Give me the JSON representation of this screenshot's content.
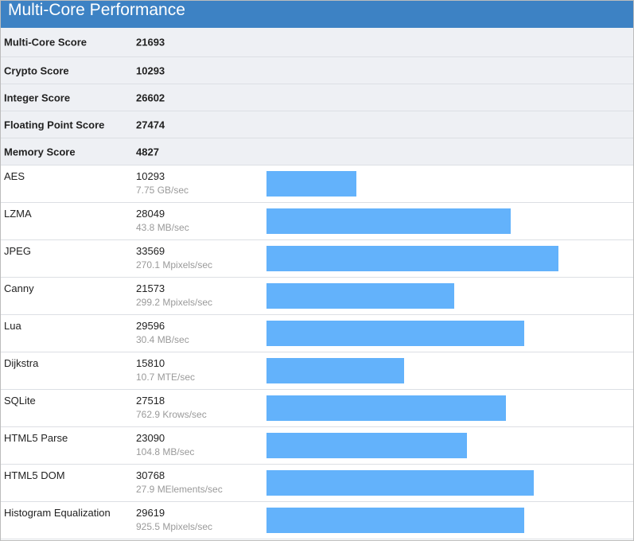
{
  "header": {
    "title": "Multi-Core Performance"
  },
  "summary": [
    {
      "label": "Multi-Core Score",
      "value": "21693"
    },
    {
      "label": "Crypto Score",
      "value": "10293"
    },
    {
      "label": "Integer Score",
      "value": "26602"
    },
    {
      "label": "Floating Point Score",
      "value": "27474"
    },
    {
      "label": "Memory Score",
      "value": "4827"
    }
  ],
  "benchmarks": [
    {
      "name": "AES",
      "score": "10293",
      "rate": "7.75 GB/sec",
      "bar_value": 10293
    },
    {
      "name": "LZMA",
      "score": "28049",
      "rate": "43.8 MB/sec",
      "bar_value": 28049
    },
    {
      "name": "JPEG",
      "score": "33569",
      "rate": "270.1 Mpixels/sec",
      "bar_value": 33569
    },
    {
      "name": "Canny",
      "score": "21573",
      "rate": "299.2 Mpixels/sec",
      "bar_value": 21573
    },
    {
      "name": "Lua",
      "score": "29596",
      "rate": "30.4 MB/sec",
      "bar_value": 29596
    },
    {
      "name": "Dijkstra",
      "score": "15810",
      "rate": "10.7 MTE/sec",
      "bar_value": 15810
    },
    {
      "name": "SQLite",
      "score": "27518",
      "rate": "762.9 Krows/sec",
      "bar_value": 27518
    },
    {
      "name": "HTML5 Parse",
      "score": "23090",
      "rate": "104.8 MB/sec",
      "bar_value": 23090
    },
    {
      "name": "HTML5 DOM",
      "score": "30768",
      "rate": "27.9 MElements/sec",
      "bar_value": 30768
    },
    {
      "name": "Histogram Equalization",
      "score": "29619",
      "rate": "925.5 Mpixels/sec",
      "bar_value": 29619
    }
  ],
  "colors": {
    "header_bg": "#3d82c4",
    "bar": "#63b2fb",
    "summary_bg": "#eef0f4",
    "rate_text": "#9a9a9a"
  }
}
